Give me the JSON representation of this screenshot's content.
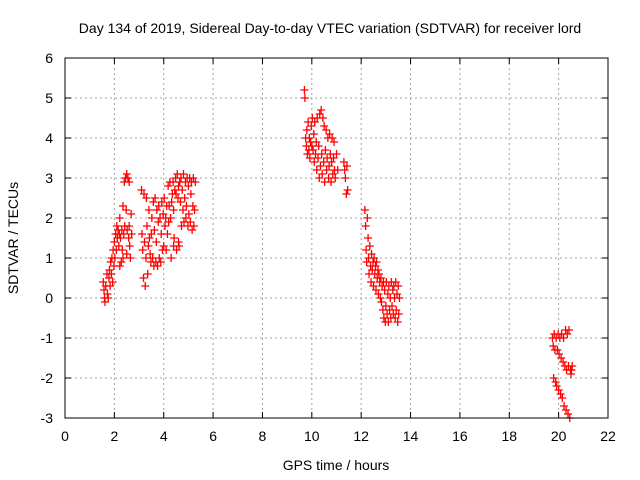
{
  "chart_data": {
    "type": "scatter",
    "title": "Day 134 of 2019, Sidereal Day-to-day VTEC variation (SDTVAR) for receiver lord",
    "xlabel": "GPS time / hours",
    "ylabel": "SDTVAR / TECUs",
    "xlim": [
      0,
      22
    ],
    "ylim": [
      -3,
      6
    ],
    "xticks": [
      0,
      2,
      4,
      6,
      8,
      10,
      12,
      14,
      16,
      18,
      20,
      22
    ],
    "yticks": [
      -3,
      -2,
      -1,
      0,
      1,
      2,
      3,
      4,
      5,
      6
    ],
    "grid": true,
    "marker": "plus",
    "color": "#ff0000",
    "series": [
      {
        "name": "SDTVAR",
        "points": [
          [
            1.55,
            0.4
          ],
          [
            1.58,
            0.2
          ],
          [
            1.6,
            0.0
          ],
          [
            1.62,
            -0.1
          ],
          [
            1.65,
            0.3
          ],
          [
            1.7,
            0.6
          ],
          [
            1.72,
            0.1
          ],
          [
            1.75,
            0.0
          ],
          [
            1.78,
            0.5
          ],
          [
            1.8,
            0.7
          ],
          [
            1.83,
            0.3
          ],
          [
            1.85,
            0.9
          ],
          [
            1.88,
            0.6
          ],
          [
            1.9,
            1.0
          ],
          [
            1.93,
            0.4
          ],
          [
            1.95,
            1.2
          ],
          [
            1.98,
            0.8
          ],
          [
            2.0,
            1.4
          ],
          [
            2.02,
            1.0
          ],
          [
            2.05,
            1.6
          ],
          [
            2.08,
            1.2
          ],
          [
            2.1,
            1.8
          ],
          [
            2.12,
            1.5
          ],
          [
            2.15,
            1.7
          ],
          [
            2.18,
            1.3
          ],
          [
            2.2,
            1.6
          ],
          [
            2.22,
            2.0
          ],
          [
            2.25,
            1.5
          ],
          [
            2.28,
            0.9
          ],
          [
            2.3,
            1.7
          ],
          [
            2.32,
            1.2
          ],
          [
            2.35,
            2.3
          ],
          [
            2.38,
            1.6
          ],
          [
            2.4,
            2.9
          ],
          [
            2.42,
            1.8
          ],
          [
            2.45,
            3.0
          ],
          [
            2.48,
            2.2
          ],
          [
            2.5,
            3.1
          ],
          [
            2.52,
            1.7
          ],
          [
            2.55,
            3.0
          ],
          [
            2.58,
            1.5
          ],
          [
            2.6,
            2.9
          ],
          [
            2.62,
            1.3
          ],
          [
            2.65,
            1.0
          ],
          [
            2.68,
            2.1
          ],
          [
            2.7,
            1.6
          ],
          [
            2.22,
            0.8
          ],
          [
            2.35,
            1.0
          ],
          [
            2.5,
            1.1
          ],
          [
            2.6,
            1.8
          ],
          [
            3.1,
            2.7
          ],
          [
            3.12,
            1.6
          ],
          [
            3.15,
            1.2
          ],
          [
            3.18,
            0.5
          ],
          [
            3.2,
            2.6
          ],
          [
            3.22,
            1.4
          ],
          [
            3.25,
            0.3
          ],
          [
            3.28,
            1.0
          ],
          [
            3.3,
            2.5
          ],
          [
            3.32,
            1.8
          ],
          [
            3.35,
            0.6
          ],
          [
            3.38,
            1.3
          ],
          [
            3.4,
            2.2
          ],
          [
            3.42,
            1.5
          ],
          [
            3.45,
            1.1
          ],
          [
            3.48,
            0.9
          ],
          [
            3.5,
            1.6
          ],
          [
            3.52,
            2.0
          ],
          [
            3.55,
            1.0
          ],
          [
            3.58,
            2.4
          ],
          [
            3.6,
            0.8
          ],
          [
            3.62,
            1.7
          ],
          [
            3.65,
            2.5
          ],
          [
            3.68,
            0.9
          ],
          [
            3.7,
            1.4
          ],
          [
            3.72,
            2.2
          ],
          [
            3.75,
            0.8
          ],
          [
            3.78,
            1.9
          ],
          [
            3.8,
            2.3
          ],
          [
            3.82,
            1.0
          ],
          [
            3.85,
            2.0
          ],
          [
            3.88,
            0.9
          ],
          [
            3.9,
            1.6
          ],
          [
            3.92,
            2.4
          ],
          [
            3.95,
            1.2
          ],
          [
            3.98,
            2.1
          ],
          [
            4.0,
            1.3
          ],
          [
            4.02,
            2.5
          ],
          [
            4.05,
            1.8
          ],
          [
            4.08,
            2.0
          ],
          [
            4.1,
            1.2
          ],
          [
            4.12,
            2.3
          ],
          [
            4.15,
            1.6
          ],
          [
            4.18,
            2.8
          ],
          [
            4.2,
            1.9
          ],
          [
            4.22,
            2.3
          ],
          [
            4.25,
            2.9
          ],
          [
            4.28,
            2.0
          ],
          [
            4.3,
            1.0
          ],
          [
            4.32,
            2.4
          ],
          [
            4.35,
            2.6
          ],
          [
            4.38,
            2.9
          ],
          [
            4.4,
            2.2
          ],
          [
            4.42,
            1.5
          ],
          [
            4.45,
            2.7
          ],
          [
            4.48,
            3.0
          ],
          [
            4.5,
            2.6
          ],
          [
            4.52,
            1.2
          ],
          [
            4.55,
            3.1
          ],
          [
            4.58,
            2.5
          ],
          [
            4.6,
            2.8
          ],
          [
            4.62,
            1.3
          ],
          [
            4.65,
            2.9
          ],
          [
            4.68,
            2.4
          ],
          [
            4.7,
            3.0
          ],
          [
            4.72,
            1.8
          ],
          [
            4.75,
            2.7
          ],
          [
            4.78,
            2.2
          ],
          [
            4.8,
            3.1
          ],
          [
            4.82,
            1.9
          ],
          [
            4.85,
            2.5
          ],
          [
            4.88,
            2.9
          ],
          [
            4.9,
            2.0
          ],
          [
            4.92,
            2.3
          ],
          [
            4.95,
            3.0
          ],
          [
            4.98,
            1.8
          ],
          [
            5.0,
            2.8
          ],
          [
            5.02,
            2.1
          ],
          [
            5.05,
            3.0
          ],
          [
            5.08,
            1.9
          ],
          [
            5.1,
            2.6
          ],
          [
            5.12,
            2.9
          ],
          [
            5.15,
            1.7
          ],
          [
            5.18,
            2.3
          ],
          [
            5.2,
            3.0
          ],
          [
            5.22,
            1.8
          ],
          [
            5.25,
            2.2
          ],
          [
            5.28,
            2.9
          ],
          [
            4.4,
            1.3
          ],
          [
            4.6,
            1.4
          ],
          [
            9.7,
            5.2
          ],
          [
            9.72,
            5.0
          ],
          [
            9.75,
            4.0
          ],
          [
            9.78,
            3.8
          ],
          [
            9.8,
            4.2
          ],
          [
            9.82,
            3.6
          ],
          [
            9.85,
            4.4
          ],
          [
            9.88,
            3.7
          ],
          [
            9.9,
            4.0
          ],
          [
            9.92,
            3.5
          ],
          [
            9.95,
            3.9
          ],
          [
            9.98,
            4.3
          ],
          [
            10.0,
            3.8
          ],
          [
            10.02,
            4.5
          ],
          [
            10.05,
            3.7
          ],
          [
            10.08,
            4.1
          ],
          [
            10.1,
            3.4
          ],
          [
            10.12,
            4.4
          ],
          [
            10.15,
            3.6
          ],
          [
            10.18,
            3.9
          ],
          [
            10.2,
            3.2
          ],
          [
            10.22,
            4.5
          ],
          [
            10.25,
            3.5
          ],
          [
            10.28,
            3.8
          ],
          [
            10.3,
            3.0
          ],
          [
            10.32,
            4.6
          ],
          [
            10.35,
            3.3
          ],
          [
            10.38,
            4.7
          ],
          [
            10.4,
            3.6
          ],
          [
            10.42,
            3.1
          ],
          [
            10.45,
            4.5
          ],
          [
            10.48,
            3.4
          ],
          [
            10.5,
            4.3
          ],
          [
            10.52,
            2.9
          ],
          [
            10.55,
            3.7
          ],
          [
            10.58,
            4.2
          ],
          [
            10.6,
            3.2
          ],
          [
            10.62,
            3.5
          ],
          [
            10.65,
            4.0
          ],
          [
            10.68,
            3.0
          ],
          [
            10.7,
            3.3
          ],
          [
            10.72,
            4.1
          ],
          [
            10.75,
            3.6
          ],
          [
            10.78,
            2.9
          ],
          [
            10.8,
            3.4
          ],
          [
            10.82,
            4.0
          ],
          [
            10.85,
            3.1
          ],
          [
            10.88,
            3.5
          ],
          [
            10.9,
            3.9
          ],
          [
            10.92,
            3.2
          ],
          [
            10.95,
            3.0
          ],
          [
            11.0,
            3.6
          ],
          [
            11.05,
            3.2
          ],
          [
            11.3,
            3.4
          ],
          [
            11.33,
            3.2
          ],
          [
            11.36,
            3.0
          ],
          [
            11.4,
            2.6
          ],
          [
            11.42,
            3.3
          ],
          [
            11.45,
            2.7
          ],
          [
            12.15,
            2.2
          ],
          [
            12.18,
            1.8
          ],
          [
            12.2,
            1.2
          ],
          [
            12.22,
            0.9
          ],
          [
            12.25,
            2.0
          ],
          [
            12.28,
            1.5
          ],
          [
            12.3,
            1.0
          ],
          [
            12.32,
            0.6
          ],
          [
            12.35,
            1.3
          ],
          [
            12.38,
            0.8
          ],
          [
            12.4,
            0.4
          ],
          [
            12.42,
            1.1
          ],
          [
            12.45,
            0.7
          ],
          [
            12.48,
            0.9
          ],
          [
            12.5,
            0.3
          ],
          [
            12.52,
            1.0
          ],
          [
            12.55,
            0.6
          ],
          [
            12.58,
            0.8
          ],
          [
            12.6,
            0.2
          ],
          [
            12.62,
            0.9
          ],
          [
            12.65,
            0.5
          ],
          [
            12.68,
            0.7
          ],
          [
            12.7,
            0.1
          ],
          [
            12.72,
            0.6
          ],
          [
            12.75,
            0.4
          ],
          [
            12.78,
            0.0
          ],
          [
            12.8,
            0.5
          ],
          [
            12.82,
            -0.1
          ],
          [
            12.85,
            0.3
          ],
          [
            12.88,
            -0.3
          ],
          [
            12.9,
            0.4
          ],
          [
            12.92,
            -0.5
          ],
          [
            12.95,
            0.2
          ],
          [
            12.98,
            -0.6
          ],
          [
            13.0,
            -0.2
          ],
          [
            13.02,
            0.4
          ],
          [
            13.05,
            -0.4
          ],
          [
            13.08,
            0.1
          ],
          [
            13.1,
            -0.6
          ],
          [
            13.12,
            0.3
          ],
          [
            13.15,
            -0.3
          ],
          [
            13.18,
            0.0
          ],
          [
            13.2,
            -0.5
          ],
          [
            13.22,
            0.4
          ],
          [
            13.25,
            -0.2
          ],
          [
            13.28,
            0.2
          ],
          [
            13.3,
            -0.4
          ],
          [
            13.32,
            0.3
          ],
          [
            13.35,
            0.0
          ],
          [
            13.38,
            -0.5
          ],
          [
            13.4,
            0.4
          ],
          [
            13.42,
            -0.3
          ],
          [
            13.45,
            0.1
          ],
          [
            13.48,
            -0.6
          ],
          [
            13.5,
            0.3
          ],
          [
            13.52,
            -0.4
          ],
          [
            13.55,
            0.0
          ],
          [
            19.75,
            -1.0
          ],
          [
            19.78,
            -1.2
          ],
          [
            19.8,
            -2.0
          ],
          [
            19.82,
            -0.9
          ],
          [
            19.85,
            -1.3
          ],
          [
            19.88,
            -2.1
          ],
          [
            19.9,
            -1.0
          ],
          [
            19.92,
            -2.2
          ],
          [
            19.95,
            -1.3
          ],
          [
            19.98,
            -0.9
          ],
          [
            20.0,
            -2.3
          ],
          [
            20.02,
            -1.4
          ],
          [
            20.05,
            -1.0
          ],
          [
            20.08,
            -2.4
          ],
          [
            20.1,
            -1.5
          ],
          [
            20.12,
            -0.9
          ],
          [
            20.15,
            -2.5
          ],
          [
            20.18,
            -1.6
          ],
          [
            20.2,
            -1.0
          ],
          [
            20.22,
            -2.7
          ],
          [
            20.25,
            -1.7
          ],
          [
            20.28,
            -0.8
          ],
          [
            20.3,
            -2.8
          ],
          [
            20.32,
            -1.8
          ],
          [
            20.35,
            -0.9
          ],
          [
            20.38,
            -2.9
          ],
          [
            20.4,
            -1.7
          ],
          [
            20.42,
            -0.8
          ],
          [
            20.45,
            -3.0
          ],
          [
            20.48,
            -1.8
          ],
          [
            20.5,
            -1.9
          ],
          [
            20.52,
            -1.8
          ],
          [
            20.55,
            -1.7
          ]
        ]
      }
    ]
  }
}
